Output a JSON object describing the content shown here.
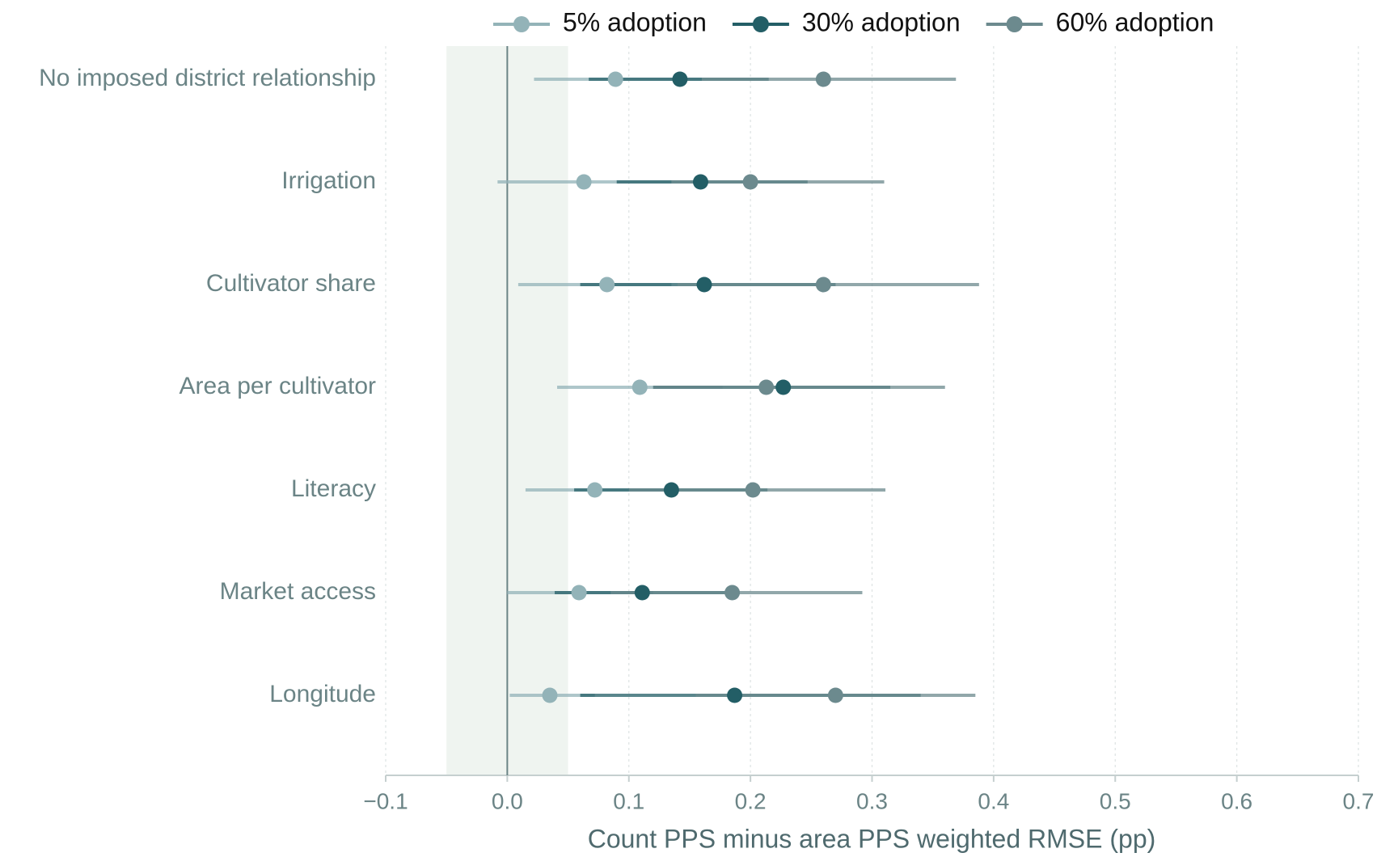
{
  "chart_data": {
    "type": "dot_interval",
    "xlabel": "Count PPS minus area PPS weighted RMSE (pp)",
    "categories": [
      "No imposed district relationship",
      "Irrigation",
      "Cultivator share",
      "Area per cultivator",
      "Literacy",
      "Market access",
      "Longitude"
    ],
    "series": [
      {
        "name": "5% adoption",
        "color": "#93b3b8",
        "values": [
          0.089,
          0.063,
          0.082,
          0.109,
          0.072,
          0.059,
          0.035
        ],
        "lower": [
          0.022,
          -0.008,
          0.009,
          0.041,
          0.015,
          0.0,
          0.002
        ],
        "upper": [
          0.16,
          0.135,
          0.135,
          0.177,
          0.13,
          0.12,
          0.072
        ]
      },
      {
        "name": "30% adoption",
        "color": "#235e66",
        "values": [
          0.142,
          0.159,
          0.162,
          0.227,
          0.135,
          0.111,
          0.187
        ],
        "lower": [
          0.067,
          0.09,
          0.06,
          0.12,
          0.055,
          0.039,
          0.06
        ],
        "upper": [
          0.215,
          0.247,
          0.27,
          0.315,
          0.214,
          0.18,
          0.34
        ]
      },
      {
        "name": "60% adoption",
        "color": "#6c8a8e",
        "values": [
          0.26,
          0.2,
          0.26,
          0.213,
          0.202,
          0.185,
          0.27
        ],
        "lower": [
          0.16,
          0.135,
          0.14,
          0.12,
          0.1,
          0.085,
          0.155
        ],
        "upper": [
          0.369,
          0.31,
          0.388,
          0.36,
          0.311,
          0.292,
          0.385
        ]
      }
    ],
    "xlim": [
      -0.1,
      0.7
    ],
    "xticks": [
      {
        "value": -0.1,
        "label": "−0.1"
      },
      {
        "value": 0,
        "label": "0.0"
      },
      0.1,
      0.2,
      0.3,
      0.4,
      0.5,
      0.6,
      0.7
    ],
    "grid": true,
    "shaded_region": [
      -0.05,
      0.05
    ],
    "reference_line": 0,
    "legend": "top"
  }
}
